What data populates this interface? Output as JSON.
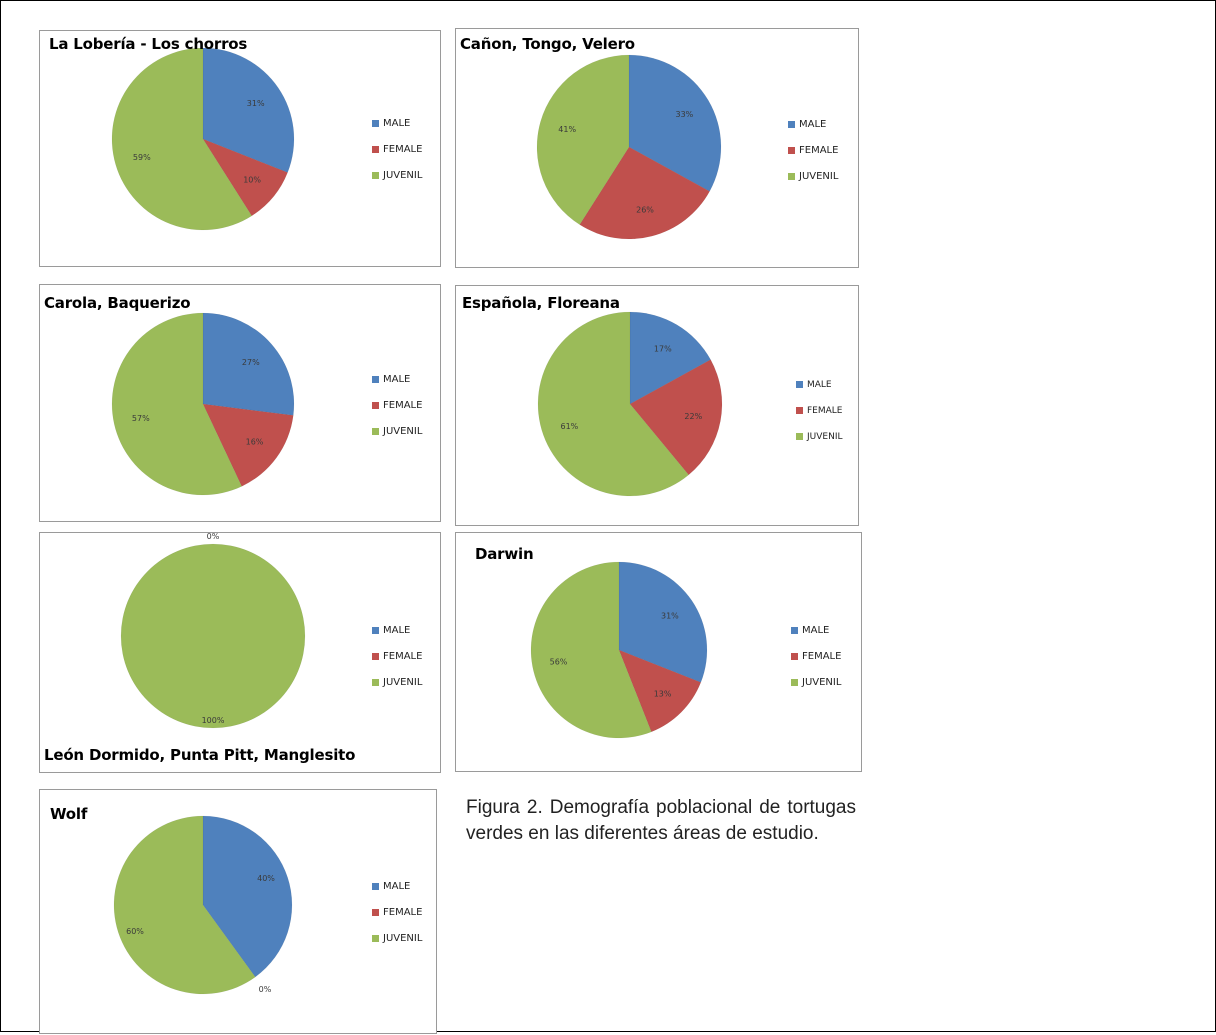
{
  "legend": [
    "MALE",
    "FEMALE",
    "JUVENIL"
  ],
  "colors": {
    "male": "#4f81bd",
    "female": "#c0504d",
    "juvenil": "#9bbb59"
  },
  "caption": "Figura 2. Demografía poblacional de tortugas verdes en las diferentes áreas de estudio.",
  "chart_data": [
    {
      "type": "pie",
      "title": "La Lobería - Los chorros",
      "categories": [
        "MALE",
        "FEMALE",
        "JUVENIL"
      ],
      "values": [
        31,
        10,
        59
      ],
      "labels": [
        "31%",
        "10%",
        "59%"
      ]
    },
    {
      "type": "pie",
      "title": "Cañon, Tongo, Velero",
      "categories": [
        "MALE",
        "FEMALE",
        "JUVENIL"
      ],
      "values": [
        33,
        26,
        41
      ],
      "labels": [
        "33%",
        "26%",
        "41%"
      ]
    },
    {
      "type": "pie",
      "title": "Carola, Baquerizo",
      "categories": [
        "MALE",
        "FEMALE",
        "JUVENIL"
      ],
      "values": [
        27,
        16,
        57
      ],
      "labels": [
        "27%",
        "16%",
        "57%"
      ]
    },
    {
      "type": "pie",
      "title": "Española, Floreana",
      "categories": [
        "MALE",
        "FEMALE",
        "JUVENIL"
      ],
      "values": [
        17,
        22,
        61
      ],
      "labels": [
        "17%",
        "22%",
        "61%"
      ]
    },
    {
      "type": "pie",
      "title": "León Dormido, Punta Pitt, Manglesito",
      "categories": [
        "MALE",
        "FEMALE",
        "JUVENIL"
      ],
      "values": [
        0,
        0,
        100
      ],
      "labels": [
        "0%",
        "",
        "100%"
      ]
    },
    {
      "type": "pie",
      "title": "Darwin",
      "categories": [
        "MALE",
        "FEMALE",
        "JUVENIL"
      ],
      "values": [
        31,
        13,
        56
      ],
      "labels": [
        "31%",
        "13%",
        "56%"
      ]
    },
    {
      "type": "pie",
      "title": "Wolf",
      "categories": [
        "MALE",
        "FEMALE",
        "JUVENIL"
      ],
      "values": [
        40,
        0,
        60
      ],
      "labels": [
        "40%",
        "0%",
        "60%"
      ]
    }
  ]
}
